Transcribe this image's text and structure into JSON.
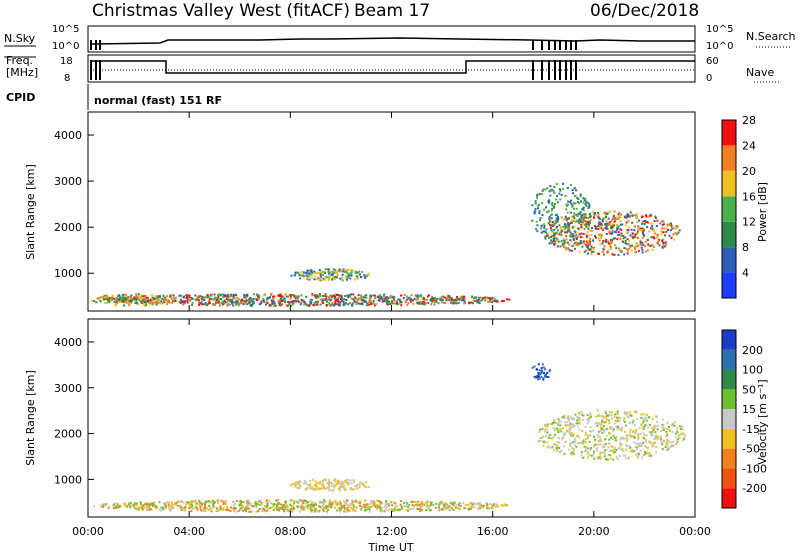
{
  "header": {
    "station": "Christmas Valley West (fitACF)",
    "beam": "Beam 17",
    "date": "06/Dec/2018"
  },
  "summary": {
    "left_top_label": "N.Sky",
    "left_mid_label1": "Freq.",
    "left_mid_label2": "[MHz]",
    "cpid_label": "CPID",
    "right_top_label": "N.Search",
    "right_mid_label": "Nave",
    "nsky_ticks": [
      "10^5",
      "10^0"
    ],
    "nsearch_ticks": [
      "10^5",
      "10^0"
    ],
    "freq_ticks": [
      "18",
      "8"
    ],
    "nave_ticks": [
      "60",
      "0"
    ],
    "cpid_text": "normal (fast) 151 RF"
  },
  "chart_data": [
    {
      "type": "heatmap",
      "name": "power",
      "ylabel": "Slant Range [km]",
      "ylim": [
        180,
        4500
      ],
      "yticks": [
        "1000",
        "2000",
        "3000",
        "4000"
      ],
      "colorbar_label": "Power [dB]",
      "colorbar_ticks": [
        "4",
        "8",
        "12",
        "16",
        "20",
        "24",
        "28"
      ],
      "colors": [
        "#1e3cff",
        "#2e5fb8",
        "#2e8a4a",
        "#4cb04c",
        "#f0c020",
        "#f08020",
        "#f01010"
      ]
    },
    {
      "type": "heatmap",
      "name": "velocity",
      "ylabel": "Slant Range [km]",
      "xlabel": "Time UT",
      "ylim": [
        180,
        4500
      ],
      "yticks": [
        "1000",
        "2000",
        "3000",
        "4000"
      ],
      "xticks": [
        "00:00",
        "04:00",
        "08:00",
        "12:00",
        "16:00",
        "20:00",
        "00:00"
      ],
      "colorbar_label": "Velocity [m s⁻¹]",
      "colorbar_ticks": [
        "200",
        "100",
        "50",
        "15",
        "-15",
        "-50",
        "-100",
        "-200"
      ],
      "colors": [
        "#1a3cc8",
        "#2e6fae",
        "#2e8a4a",
        "#6cc030",
        "#c8c8c8",
        "#f0c020",
        "#f08020",
        "#f05010",
        "#f01010"
      ]
    }
  ]
}
